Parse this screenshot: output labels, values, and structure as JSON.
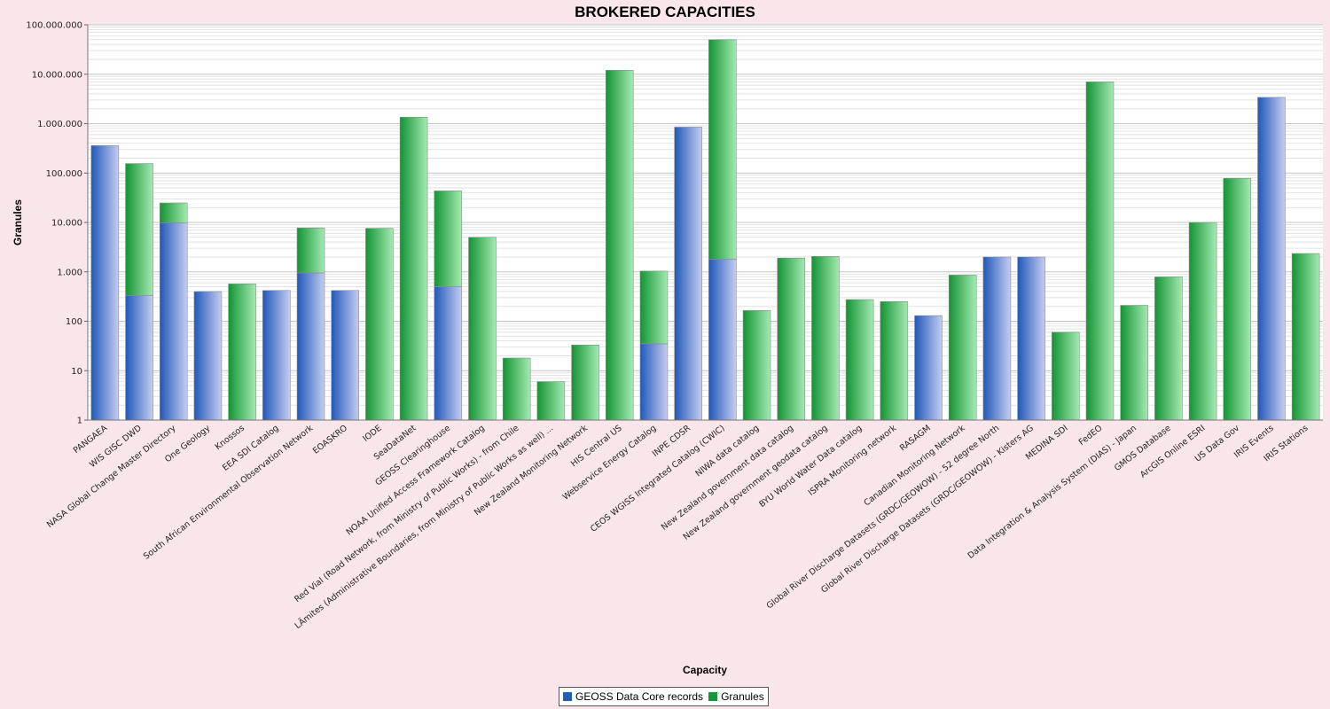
{
  "chart_data": {
    "type": "bar",
    "stacked": true,
    "title": "BROKERED CAPACITIES",
    "xlabel": "Capacity",
    "ylabel": "Granules",
    "yscale": "log",
    "ylim": [
      1,
      100000000
    ],
    "grid": true,
    "legend_position": "bottom",
    "y_ticks": [
      "1",
      "10",
      "100",
      "1.000",
      "10.000",
      "100.000",
      "1.000.000",
      "10.000.000",
      "100.000.000"
    ],
    "categories": [
      "PANGAEA",
      "WIS GISC DWD",
      "NASA Global Change Master Directory",
      "One Geology",
      "Knossos",
      "EEA SDI Catalog",
      "South African Environmental Observation Network",
      "EOASKRO",
      "IODE",
      "SeaDataNet",
      "GEOSS Clearinghouse",
      "NOAA Unified Access Framework Catalog",
      "Red Vial (Road Network, from Ministry of Public Works) - from Chile",
      "LÃ­mites (Administrative Boundaries, from Ministry of Public Works as well) ...",
      "New Zealand Monitoring Network",
      "HIS Central US",
      "Webservice Energy Catalog",
      "INPE CDSR",
      "CEOS WGISS Integrated Catalog (CWIC)",
      "NIWA data catalog",
      "New Zealand government data catalog",
      "New Zealand government geodata catalog",
      "BYU World Water Data catalog",
      "ISPRA Monitoring network",
      "RASAGM",
      "Canadian Monitoring Network",
      "Global River Discharge Datasets (GRDC/GEOWOW) - 52 degree North",
      "Global River Discharge Datasets (GRDC/GEOWOW) - Kisters AG",
      "MEDINA SDI",
      "FedEO",
      "Data Integration & Analysis System (DIAS) - Japan",
      "GMOS Database",
      "ArcGIS Online ESRI",
      "US Data Gov",
      "IRIS Events",
      "IRIS Stations"
    ],
    "series": [
      {
        "name": "GEOSS Data Core records",
        "color": "#1f5fb4",
        "values": [
          360000,
          330,
          9800,
          400,
          0,
          420,
          950,
          420,
          0,
          0,
          500,
          0,
          0,
          0,
          0,
          0,
          35,
          850000,
          1800,
          0,
          0,
          0,
          0,
          0,
          130,
          0,
          2000,
          2000,
          0,
          0,
          0,
          0,
          0,
          0,
          3400000,
          0
        ]
      },
      {
        "name": "Granules",
        "color": "#16983a",
        "values": [
          0,
          155000,
          15000,
          0,
          570,
          0,
          6800,
          0,
          7600,
          1350000,
          43000,
          5000,
          18,
          6,
          33,
          12000000,
          1000,
          0,
          50000000,
          165,
          1900,
          2050,
          275,
          250,
          0,
          860,
          0,
          0,
          60,
          7000000,
          210,
          790,
          10000,
          78000,
          0,
          2350
        ]
      }
    ]
  },
  "legend": {
    "core_label": "GEOSS Data Core records",
    "granules_label": "Granules",
    "core_color": "#1f5fb4",
    "granules_color": "#16983a"
  }
}
